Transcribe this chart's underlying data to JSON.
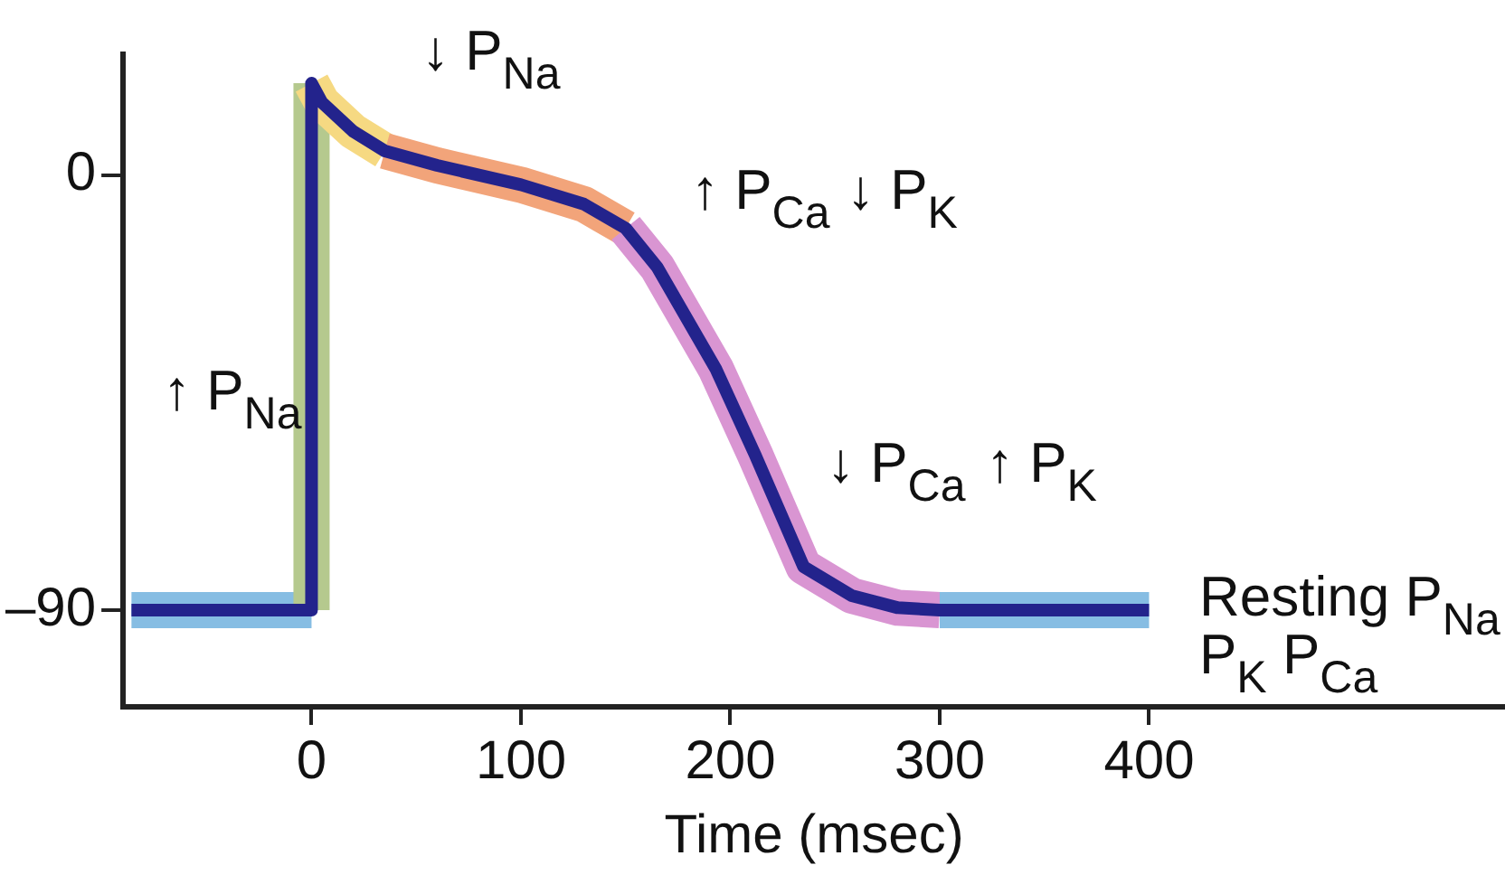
{
  "chart_data": {
    "type": "line",
    "xlabel": "Time (msec)",
    "xlim": [
      -90,
      570
    ],
    "xticks": [
      0,
      100,
      200,
      300,
      400
    ],
    "ylim": [
      -110,
      25
    ],
    "yticks": [
      {
        "value": -90,
        "label": "–90"
      },
      0
    ],
    "grid": false,
    "legend": false,
    "marker": "none",
    "series": [
      {
        "color": "#86bde3",
        "x": [
          -86,
          0
        ],
        "values": [
          -90,
          -90
        ]
      },
      {
        "color": "#b5c98e",
        "x": [
          0,
          0
        ],
        "values": [
          -90,
          19
        ]
      },
      {
        "color": "#f6d982",
        "x": [
          0,
          5,
          20,
          35
        ],
        "values": [
          19,
          15,
          9,
          5
        ]
      },
      {
        "color": "#f2a47a",
        "x": [
          35,
          60,
          100,
          130,
          150
        ],
        "values": [
          5,
          2,
          -2,
          -6,
          -11
        ]
      },
      {
        "color": "#d995d2",
        "x": [
          150,
          165,
          193,
          212,
          235,
          258,
          280,
          300
        ],
        "values": [
          -11,
          -19,
          -40,
          -58,
          -81,
          -87,
          -89.5,
          -90
        ]
      },
      {
        "color": "#86bde3",
        "x": [
          300,
          400
        ],
        "values": [
          -90,
          -90
        ]
      },
      {
        "color": "#23238c",
        "x": [
          -86,
          0,
          0,
          5,
          20,
          35,
          60,
          100,
          130,
          150,
          165,
          193,
          212,
          235,
          258,
          280,
          300,
          400
        ],
        "values": [
          -90,
          -90,
          19,
          15,
          9,
          5,
          2,
          -2,
          -6,
          -11,
          -19,
          -40,
          -58,
          -81,
          -87,
          -89.5,
          -90,
          -90
        ]
      }
    ],
    "annotations": [
      "↑ P$_{Na}$",
      "↓ P$_{Na}$",
      "↑ P$_{Ca}$",
      "↓ P$_{K}$",
      "↓ P$_{Ca}$",
      "↑ P$_{K}$",
      "Resting P$_{Na}$",
      "P$_{K}$ P$_{Ca}$"
    ]
  }
}
